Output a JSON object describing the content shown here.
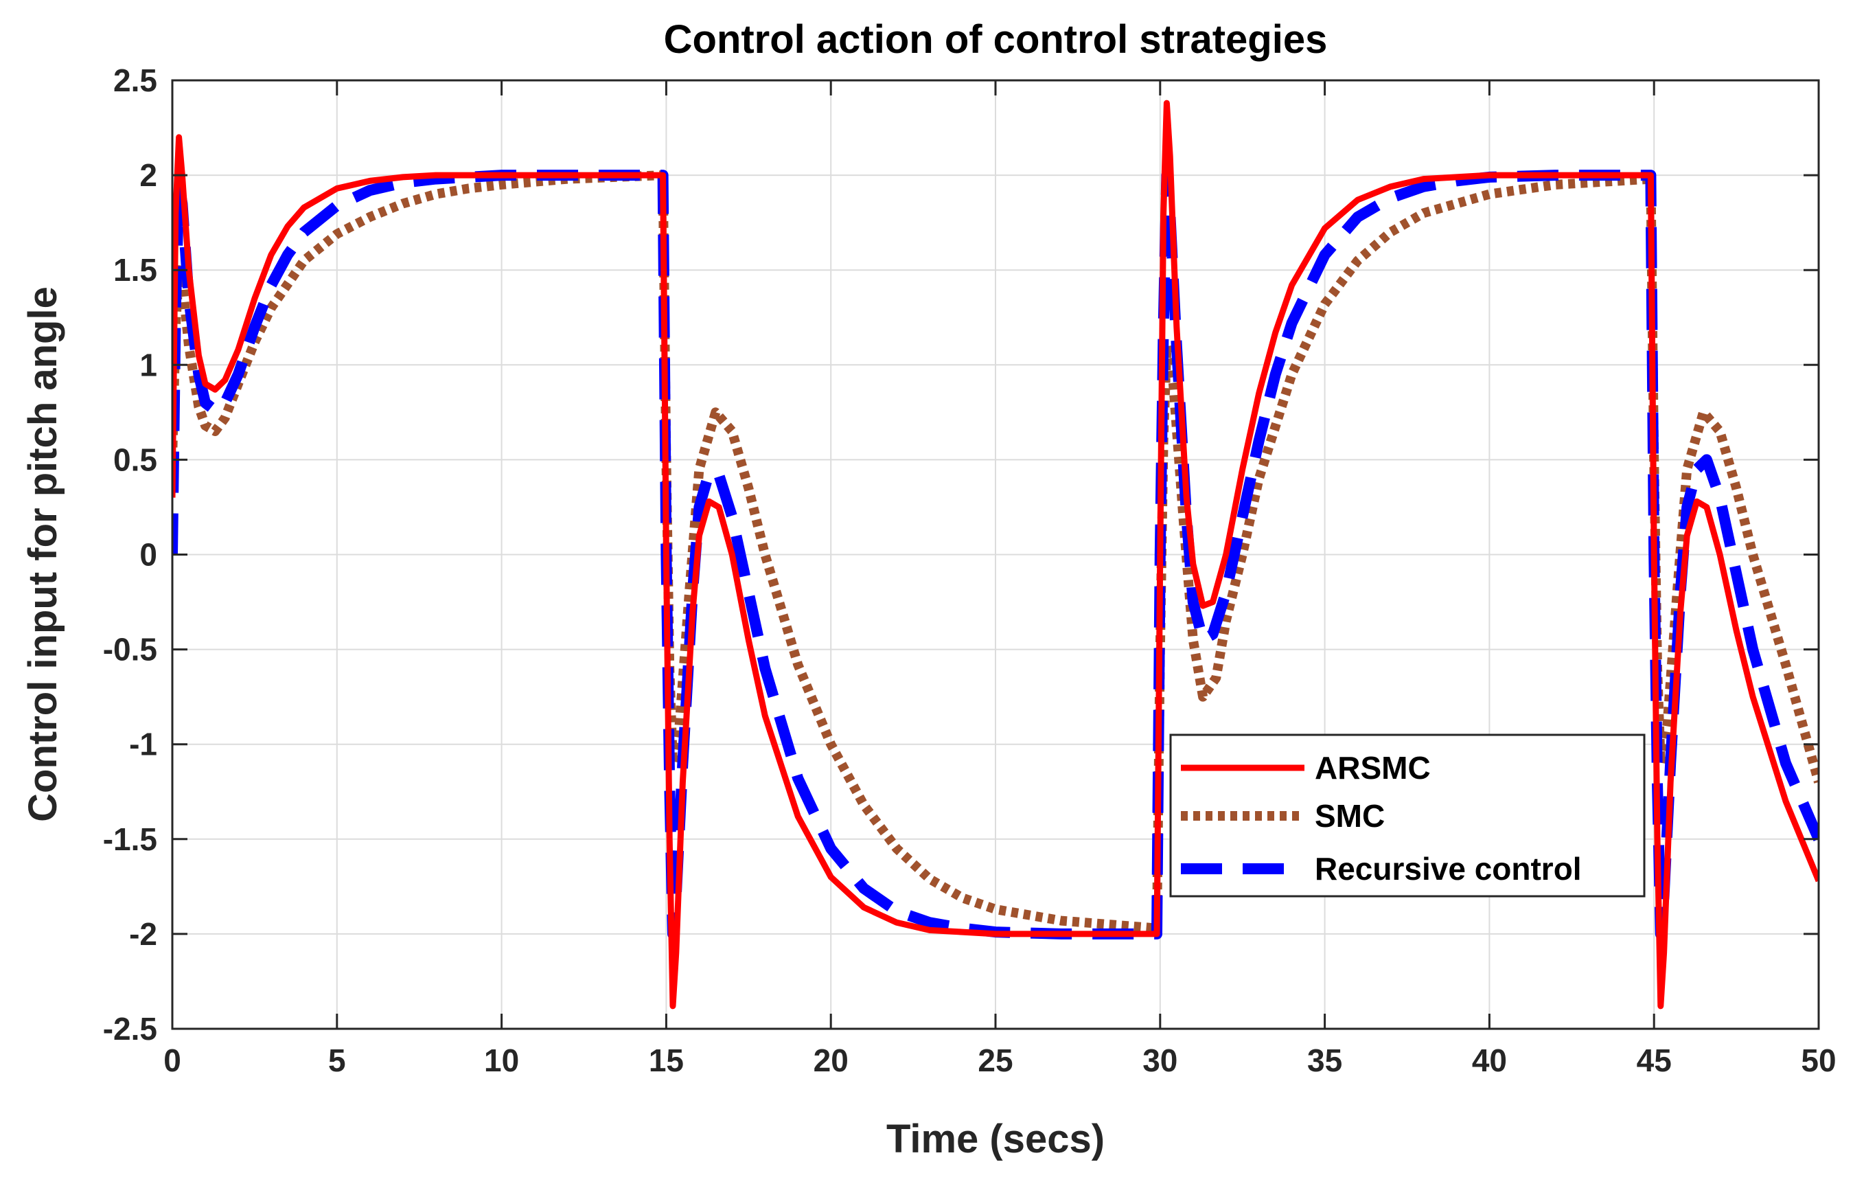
{
  "chart_data": {
    "type": "line",
    "title": "Control action of control strategies",
    "xlabel": "Time (secs)",
    "ylabel": "Control input for pitch angle",
    "xlim": [
      0,
      50
    ],
    "ylim": [
      -2.5,
      2.5
    ],
    "xticks": [
      0,
      5,
      10,
      15,
      20,
      25,
      30,
      35,
      40,
      45,
      50
    ],
    "yticks": [
      2.5,
      2,
      1.5,
      1,
      0.5,
      0,
      -0.5,
      -1,
      -1.5,
      -2,
      -2.5
    ],
    "xtick_labels": [
      "0",
      "5",
      "10",
      "15",
      "20",
      "25",
      "30",
      "35",
      "40",
      "45",
      "50"
    ],
    "ytick_labels": [
      "2.5",
      "2",
      "1.5",
      "1",
      "0.5",
      "0",
      "-0.5",
      "-1",
      "-1.5",
      "-2",
      "-2.5"
    ],
    "grid": true,
    "legend_position": "center-right",
    "series": [
      {
        "name": "ARSMC",
        "color": "#ff0000",
        "style": "solid",
        "x": [
          0,
          0.1,
          0.2,
          0.3,
          0.5,
          0.8,
          1.0,
          1.3,
          1.6,
          2.0,
          2.5,
          3.0,
          3.5,
          4.0,
          5.0,
          6.0,
          7.0,
          8.0,
          9.0,
          10.0,
          12.0,
          14.9,
          15.0,
          15.1,
          15.2,
          15.3,
          15.5,
          15.8,
          16.0,
          16.3,
          16.6,
          17.0,
          17.5,
          18.0,
          19.0,
          20.0,
          21.0,
          22.0,
          23.0,
          24.0,
          25.0,
          27.0,
          29.9,
          30.0,
          30.1,
          30.2,
          30.3,
          30.5,
          30.8,
          31.0,
          31.3,
          31.6,
          32.0,
          32.5,
          33.0,
          33.5,
          34.0,
          35.0,
          36.0,
          37.0,
          38.0,
          39.0,
          40.0,
          42.0,
          44.9,
          45.0,
          45.1,
          45.2,
          45.3,
          45.5,
          45.8,
          46.0,
          46.3,
          46.6,
          47.0,
          47.5,
          48.0,
          49.0,
          50.0
        ],
        "y": [
          0.3,
          1.8,
          2.2,
          2.0,
          1.5,
          1.05,
          0.9,
          0.87,
          0.92,
          1.08,
          1.35,
          1.58,
          1.73,
          1.83,
          1.93,
          1.97,
          1.99,
          2.0,
          2.0,
          2.0,
          2.0,
          2.0,
          0.0,
          -1.5,
          -2.38,
          -2.1,
          -1.2,
          -0.3,
          0.1,
          0.28,
          0.25,
          0.0,
          -0.45,
          -0.85,
          -1.38,
          -1.7,
          -1.86,
          -1.94,
          -1.98,
          -1.99,
          -2.0,
          -2.0,
          -2.0,
          0.0,
          1.8,
          2.38,
          2.1,
          1.2,
          0.3,
          -0.05,
          -0.27,
          -0.25,
          0.0,
          0.45,
          0.85,
          1.17,
          1.42,
          1.72,
          1.87,
          1.94,
          1.98,
          1.99,
          2.0,
          2.0,
          2.0,
          0.0,
          -1.5,
          -2.38,
          -2.1,
          -1.2,
          -0.3,
          0.1,
          0.28,
          0.25,
          0.0,
          -0.4,
          -0.75,
          -1.3,
          -1.72
        ]
      },
      {
        "name": "SMC",
        "color": "#a0522d",
        "style": "dotted",
        "x": [
          0,
          0.1,
          0.2,
          0.3,
          0.5,
          0.8,
          1.0,
          1.3,
          1.6,
          2.0,
          2.5,
          3.0,
          4.0,
          5.0,
          6.0,
          7.0,
          8.0,
          9.0,
          10.0,
          12.0,
          14.9,
          15.0,
          15.1,
          15.2,
          15.4,
          15.7,
          16.0,
          16.5,
          17.0,
          17.5,
          18.0,
          19.0,
          20.0,
          21.0,
          22.0,
          23.0,
          24.0,
          25.0,
          27.0,
          29.9,
          30.0,
          30.1,
          30.2,
          30.4,
          30.7,
          31.0,
          31.3,
          31.7,
          32.0,
          32.5,
          33.0,
          34.0,
          35.0,
          36.0,
          37.0,
          38.0,
          40.0,
          42.0,
          44.9,
          45.0,
          45.1,
          45.2,
          45.4,
          45.7,
          46.0,
          46.5,
          47.0,
          47.5,
          48.0,
          49.0,
          50.0
        ],
        "y": [
          0.5,
          1.2,
          1.5,
          1.45,
          1.1,
          0.78,
          0.68,
          0.65,
          0.72,
          0.9,
          1.12,
          1.3,
          1.55,
          1.69,
          1.78,
          1.85,
          1.9,
          1.93,
          1.95,
          1.98,
          2.0,
          0.5,
          -0.6,
          -1.1,
          -0.9,
          -0.2,
          0.45,
          0.75,
          0.65,
          0.35,
          0.0,
          -0.58,
          -1.0,
          -1.32,
          -1.55,
          -1.71,
          -1.81,
          -1.87,
          -1.93,
          -1.97,
          -0.5,
          0.6,
          1.1,
          0.9,
          0.2,
          -0.45,
          -0.75,
          -0.65,
          -0.35,
          0.0,
          0.4,
          0.95,
          1.32,
          1.55,
          1.7,
          1.8,
          1.9,
          1.95,
          1.98,
          0.5,
          -0.6,
          -1.1,
          -0.9,
          -0.2,
          0.45,
          0.75,
          0.65,
          0.35,
          0.0,
          -0.58,
          -1.2
        ]
      },
      {
        "name": "Recursive control",
        "color": "#0000ff",
        "style": "dashed",
        "x": [
          0,
          0.1,
          0.2,
          0.3,
          0.5,
          0.8,
          1.0,
          1.3,
          1.6,
          2.0,
          2.5,
          3.0,
          3.5,
          4.0,
          5.0,
          6.0,
          7.0,
          8.0,
          9.0,
          10.0,
          12.0,
          14.9,
          15.0,
          15.1,
          15.2,
          15.3,
          15.5,
          15.8,
          16.0,
          16.3,
          16.6,
          17.0,
          17.5,
          18.0,
          19.0,
          20.0,
          21.0,
          22.0,
          23.0,
          24.0,
          25.0,
          27.0,
          29.9,
          30.0,
          30.1,
          30.2,
          30.3,
          30.5,
          30.8,
          31.0,
          31.3,
          31.6,
          32.0,
          32.5,
          33.0,
          33.5,
          34.0,
          35.0,
          36.0,
          37.0,
          38.0,
          39.0,
          40.0,
          42.0,
          44.9,
          45.0,
          45.1,
          45.2,
          45.3,
          45.5,
          45.8,
          46.0,
          46.3,
          46.6,
          47.0,
          47.5,
          48.0,
          49.0,
          50.0
        ],
        "y": [
          0.0,
          1.3,
          1.95,
          1.85,
          1.35,
          0.95,
          0.8,
          0.76,
          0.8,
          0.95,
          1.2,
          1.42,
          1.58,
          1.7,
          1.84,
          1.92,
          1.96,
          1.98,
          1.99,
          2.0,
          2.0,
          2.0,
          0.0,
          -1.2,
          -2.0,
          -1.8,
          -1.1,
          -0.2,
          0.25,
          0.43,
          0.42,
          0.2,
          -0.2,
          -0.6,
          -1.18,
          -1.55,
          -1.76,
          -1.88,
          -1.94,
          -1.97,
          -1.99,
          -2.0,
          -2.0,
          0.0,
          1.2,
          2.0,
          1.8,
          1.1,
          0.2,
          -0.25,
          -0.45,
          -0.42,
          -0.2,
          0.2,
          0.6,
          0.95,
          1.22,
          1.58,
          1.78,
          1.88,
          1.94,
          1.97,
          1.99,
          2.0,
          2.0,
          0.0,
          -1.2,
          -2.0,
          -1.8,
          -1.1,
          -0.2,
          0.25,
          0.45,
          0.5,
          0.3,
          -0.1,
          -0.5,
          -1.1,
          -1.5
        ]
      }
    ]
  }
}
